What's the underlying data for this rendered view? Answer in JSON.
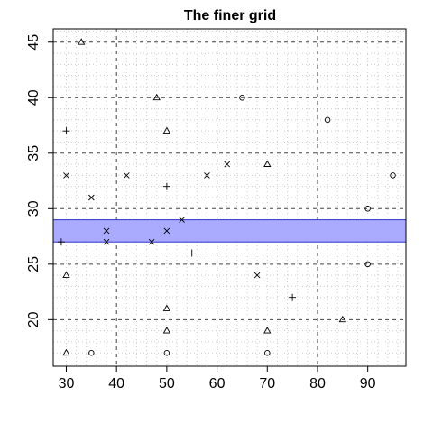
{
  "chart_data": {
    "type": "scatter",
    "title": "The finer grid",
    "xlabel": "",
    "ylabel": "",
    "xlim": [
      27.4,
      97.6
    ],
    "ylim": [
      15.8,
      46.2
    ],
    "x_ticks": [
      30,
      40,
      50,
      60,
      70,
      80,
      90
    ],
    "y_ticks": [
      20,
      25,
      30,
      35,
      40,
      45
    ],
    "grid": {
      "major_dashed_x": [
        40,
        60,
        80
      ],
      "major_dashed_y": [
        20,
        25,
        30,
        35,
        40,
        45
      ],
      "minor_dotted_x": [
        30,
        32,
        34,
        36,
        38,
        42,
        44,
        46,
        48,
        50,
        52,
        54,
        56,
        58,
        62,
        64,
        66,
        68,
        70,
        72,
        74,
        76,
        78,
        82,
        84,
        86,
        88,
        90,
        92,
        94,
        96
      ],
      "minor_dotted_y": [
        17,
        18,
        19,
        21,
        22,
        23,
        24,
        26,
        27,
        28,
        29,
        31,
        32,
        33,
        34,
        36,
        37,
        38,
        39,
        41,
        42,
        43,
        44,
        46
      ]
    },
    "band": {
      "y_from": 27,
      "y_to": 29,
      "fill": "#AAAAFF",
      "border": "#3333CC"
    },
    "points": [
      {
        "x": 33,
        "y": 45,
        "shape": "triangle"
      },
      {
        "x": 48,
        "y": 40,
        "shape": "triangle"
      },
      {
        "x": 50,
        "y": 37,
        "shape": "triangle"
      },
      {
        "x": 70,
        "y": 34,
        "shape": "triangle"
      },
      {
        "x": 30,
        "y": 24,
        "shape": "triangle"
      },
      {
        "x": 50,
        "y": 21,
        "shape": "triangle"
      },
      {
        "x": 85,
        "y": 20,
        "shape": "triangle"
      },
      {
        "x": 50,
        "y": 19,
        "shape": "triangle"
      },
      {
        "x": 70,
        "y": 19,
        "shape": "triangle"
      },
      {
        "x": 30,
        "y": 17,
        "shape": "triangle"
      },
      {
        "x": 65,
        "y": 40,
        "shape": "circle"
      },
      {
        "x": 82,
        "y": 38,
        "shape": "circle"
      },
      {
        "x": 95,
        "y": 33,
        "shape": "circle"
      },
      {
        "x": 90,
        "y": 30,
        "shape": "circle"
      },
      {
        "x": 90,
        "y": 25,
        "shape": "circle"
      },
      {
        "x": 35,
        "y": 17,
        "shape": "circle"
      },
      {
        "x": 50,
        "y": 17,
        "shape": "circle"
      },
      {
        "x": 70,
        "y": 17,
        "shape": "circle"
      },
      {
        "x": 30,
        "y": 37,
        "shape": "plus"
      },
      {
        "x": 50,
        "y": 32,
        "shape": "plus"
      },
      {
        "x": 29,
        "y": 27,
        "shape": "plus"
      },
      {
        "x": 55,
        "y": 26,
        "shape": "plus"
      },
      {
        "x": 75,
        "y": 22,
        "shape": "plus"
      },
      {
        "x": 30,
        "y": 33,
        "shape": "cross"
      },
      {
        "x": 42,
        "y": 33,
        "shape": "cross"
      },
      {
        "x": 58,
        "y": 33,
        "shape": "cross"
      },
      {
        "x": 62,
        "y": 34,
        "shape": "cross"
      },
      {
        "x": 35,
        "y": 31,
        "shape": "cross"
      },
      {
        "x": 53,
        "y": 29,
        "shape": "cross"
      },
      {
        "x": 38,
        "y": 28,
        "shape": "cross"
      },
      {
        "x": 50,
        "y": 28,
        "shape": "cross"
      },
      {
        "x": 38,
        "y": 27,
        "shape": "cross"
      },
      {
        "x": 47,
        "y": 27,
        "shape": "cross"
      },
      {
        "x": 68,
        "y": 24,
        "shape": "cross"
      }
    ]
  }
}
